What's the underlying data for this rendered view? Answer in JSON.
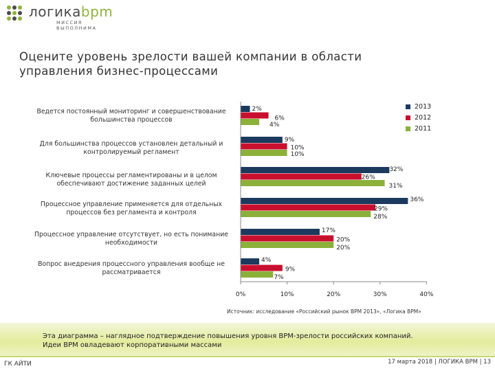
{
  "logo": {
    "name_main": "логика",
    "name_accent": "bpm",
    "tagline": "МИССИЯ ВЫПОЛНИМА"
  },
  "title_lines": [
    "Оцените уровень зрелости вашей компании в области",
    "управления бизнес-процессами"
  ],
  "source": "Источник: исследование «Российский рынок BPM 2013», «Логика BPM»",
  "banner_lines": [
    "Эта диаграмма – наглядное подтверждение повышения уровня BPM-зрелости российских компаний.",
    "Идеи BPM овладевают корпоративными массами"
  ],
  "footer": {
    "left": "ГК АЙТИ",
    "right": "17 марта 2018  |  ЛОГИКА BPM  |  13"
  },
  "colors": {
    "2013": "#1b3a5e",
    "2012": "#c8102e",
    "2011": "#8bb13a"
  },
  "chart_data": {
    "type": "bar",
    "orientation": "horizontal",
    "categories": [
      [
        "Ведется постоянный мониторинг и совершенствование",
        "большинства процессов"
      ],
      [
        "Для большинства процессов установлен детальный и",
        "контролируемый регламент"
      ],
      [
        "Ключевые процессы регламентированы и в целом",
        "обеспечивают достижение заданных целей"
      ],
      [
        "Процессное управление применяется для отдельных",
        "процессов без регламента и контроля"
      ],
      [
        "Процессное управление отсутствует, но есть понимание",
        "необходимости"
      ],
      [
        "Вопрос внедрения процессного управления вообще не",
        "рассматривается"
      ]
    ],
    "series": [
      {
        "name": "2013",
        "values": [
          2,
          9,
          32,
          36,
          17,
          4
        ]
      },
      {
        "name": "2012",
        "values": [
          6,
          10,
          26,
          29,
          20,
          9
        ]
      },
      {
        "name": "2011",
        "values": [
          4,
          10,
          31,
          28,
          20,
          7
        ]
      }
    ],
    "unit": "%",
    "xlim": [
      0,
      40
    ],
    "xticks": [
      "0%",
      "10%",
      "20%",
      "30%",
      "40%"
    ],
    "legend_position": "top-right",
    "grid": false
  }
}
